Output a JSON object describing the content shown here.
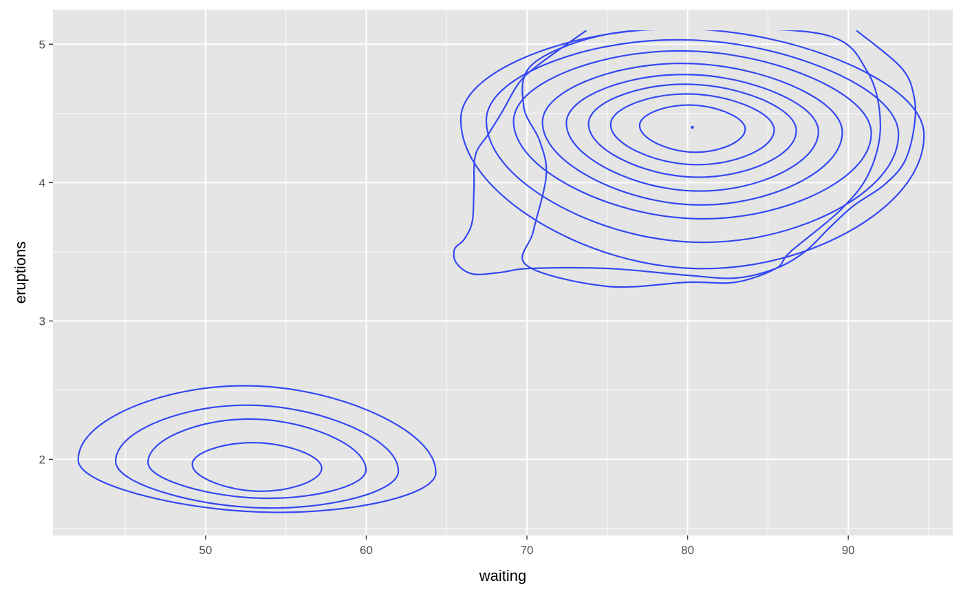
{
  "chart_data": {
    "type": "contour",
    "title": "",
    "xlabel": "waiting",
    "ylabel": "eruptions",
    "xlim": [
      40.5,
      96.5
    ],
    "ylim": [
      1.45,
      5.25
    ],
    "x_ticks": [
      50,
      60,
      70,
      80,
      90
    ],
    "x_tick_labels": [
      "50",
      "60",
      "70",
      "80",
      "90"
    ],
    "y_ticks": [
      2,
      3,
      4,
      5
    ],
    "y_tick_labels": [
      "2",
      "3",
      "4",
      "5"
    ],
    "x_minor_ticks": [
      45,
      55,
      65,
      75,
      85,
      95
    ],
    "y_minor_ticks": [
      1.5,
      2.5,
      3.5,
      4.5
    ],
    "grid": true,
    "legend": "none",
    "line_color": "#3347f2",
    "panel_background": "#e5e5e5",
    "grid_color": "#ffffff",
    "series": [
      {
        "cluster": "long",
        "points": [
          [
            73.7,
            5.1
          ],
          [
            70.7,
            4.85
          ],
          [
            69.5,
            4.72
          ],
          [
            68.5,
            4.52
          ],
          [
            67.6,
            4.35
          ],
          [
            66.8,
            4.2
          ],
          [
            66.7,
            3.95
          ],
          [
            66.6,
            3.72
          ],
          [
            66.1,
            3.59
          ],
          [
            65.5,
            3.52
          ],
          [
            65.6,
            3.42
          ],
          [
            66.6,
            3.34
          ],
          [
            68.3,
            3.35
          ],
          [
            70.2,
            3.38
          ],
          [
            75,
            3.38
          ],
          [
            80,
            3.33
          ],
          [
            83,
            3.31
          ],
          [
            85.5,
            3.38
          ],
          [
            87.3,
            3.5
          ],
          [
            88.8,
            3.67
          ],
          [
            90.3,
            3.83
          ],
          [
            92.2,
            3.98
          ],
          [
            93.5,
            4.15
          ],
          [
            94.1,
            4.4
          ],
          [
            94.1,
            4.62
          ],
          [
            93.3,
            4.83
          ],
          [
            90.5,
            5.1
          ]
        ]
      },
      {
        "type": "closed",
        "points": [
          [
            70,
            3.4
          ],
          [
            75,
            3.25
          ],
          [
            80,
            3.28
          ],
          [
            83,
            3.28
          ],
          [
            85.5,
            3.38
          ],
          [
            86.4,
            3.5
          ],
          [
            89.5,
            3.8
          ],
          [
            91.3,
            4.07
          ],
          [
            92.0,
            4.42
          ],
          [
            91.2,
            4.8
          ],
          [
            88.5,
            5.07
          ],
          [
            80,
            5.11
          ],
          [
            74.5,
            5.06
          ],
          [
            70.3,
            4.85
          ],
          [
            69.8,
            4.55
          ],
          [
            70.8,
            4.3
          ],
          [
            71.2,
            4.05
          ],
          [
            70.4,
            3.65
          ]
        ]
      }
    ],
    "contours": [
      {
        "cluster": "long",
        "center": [
          80.3,
          4.4
        ],
        "levels": [
          {
            "rx": 13.6,
            "ry_top": 0.71,
            "ry_bot": 1.02
          },
          {
            "rx": 12.1,
            "ry_top": 0.63,
            "ry_bot": 0.83
          },
          {
            "rx": 10.5,
            "ry_top": 0.55,
            "ry_bot": 0.66
          },
          {
            "rx": 8.8,
            "ry_top": 0.46,
            "ry_bot": 0.56
          },
          {
            "rx": 7.4,
            "ry_top": 0.38,
            "ry_bot": 0.46
          },
          {
            "rx": 6.1,
            "ry_top": 0.31,
            "ry_bot": 0.36
          },
          {
            "rx": 4.8,
            "ry_top": 0.24,
            "ry_bot": 0.27
          },
          {
            "rx": 3.1,
            "ry_top": 0.16,
            "ry_bot": 0.18
          }
        ]
      },
      {
        "cluster": "short",
        "center": [
          53.2,
          1.95
        ],
        "levels": [
          {
            "rx": 10.5,
            "ry_top": 0.58,
            "ry_bot": 0.33
          },
          {
            "rx": 8.3,
            "ry_top": 0.44,
            "ry_bot": 0.3
          },
          {
            "rx": 6.4,
            "ry_top": 0.34,
            "ry_bot": 0.23
          },
          {
            "rx": 3.8,
            "ry_top": 0.17,
            "ry_bot": 0.18
          }
        ]
      }
    ]
  }
}
